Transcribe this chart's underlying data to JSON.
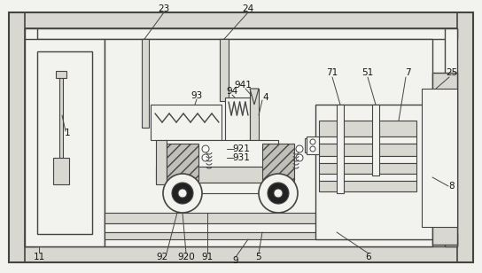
{
  "bg_color": "#f2f2ee",
  "lc": "#444444",
  "figsize": [
    5.44,
    3.08
  ],
  "dpi": 100,
  "white": "#ffffff",
  "light_gray": "#d8d8d0",
  "mid_gray": "#c0c0b8",
  "dark_fill": "#888880",
  "hatch_gray": "#b0b0a8"
}
